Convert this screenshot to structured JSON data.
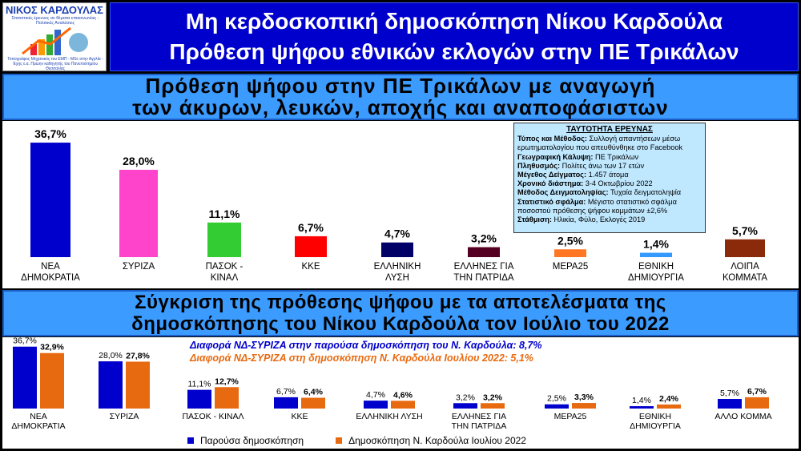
{
  "logo": {
    "name": "ΝΙΚΟΣ ΚΑΡΔΟΥΛΑΣ",
    "subtitle": "Στατιστικές έρευνες σε θέματα επικοινωνίας - Πολιτικές Αναλύσεις",
    "footer": "Τοπογράφος Μηχανικός του ΕΜΠ - MSc στην Αγγλία - Έχης ε.α. Πρώην καθηγητής του Πανεπιστημίου Θεσσαλίας"
  },
  "header": {
    "line1": "Μη κερδοσκοπική δημοσκόπηση  Νίκου  Καρδούλα",
    "line2": "Πρόθεση ψήφου εθνικών εκλογών στην ΠΕ Τρικάλων"
  },
  "band1": {
    "line1": "Πρόθεση   ψήφου   στην   ΠΕ   Τρικάλων  με  αναγωγή",
    "line2": "των άκυρων, λευκών, αποχής και αναποφάσιστων"
  },
  "band2": {
    "line1": "Σύγκριση της πρόθεσης ψήφου με τα αποτελέσματα της",
    "line2": "δημοσκόπησης του Νίκου Καρδούλα τον Ιούλιο του 2022"
  },
  "survey": {
    "title": "ΤΑΥΤΟΤΗΤΑ ΕΡΕΥΝΑΣ",
    "rows": [
      {
        "k": "Τύπος και Μέθοδος:",
        "v": " Συλλογή απαντήσεων μέσω ερωτηματολογίου που απευθύνθηκε στο Facebook"
      },
      {
        "k": "Γεωγραφική Κάλυψη:",
        "v": " ΠΕ Τρικάλων"
      },
      {
        "k": "Πληθυσμός:",
        "v": " Πολίτες άνω των 17 ετών"
      },
      {
        "k": "Μέγεθος Δείγματος:",
        "v": "  1.457 άτομα"
      },
      {
        "k": "Χρονικό διάστημα:",
        "v": " 3-4 Οκτωβρίου 2022"
      },
      {
        "k": "Μέθοδος Δειγματοληψίας:",
        "v": " Τυχαία δειγματοληψία"
      },
      {
        "k": "Στατιστικό σφάλμα:",
        "v": "  Μέγιστο στατιστικό σφάλμα ποσοστού πρόθεσης ψήφου κομμάτων ±2,6%"
      },
      {
        "k": "Στάθμιση:",
        "v": " Ηλικία, Φύλο, Εκλογές 2019"
      }
    ]
  },
  "notes": {
    "n1": "Διαφορά ΝΔ-ΣΥΡΙΖΑ στην παρούσα δημοσκόπηση του Ν. Καρδούλα: 8,7%",
    "n2": "Διαφορά ΝΔ-ΣΥΡΙΖΑ στη  δημοσκόπηση  Ν. Καρδούλα  Ιουλίου 2022: 5,1%"
  },
  "legend": {
    "current": "Παρούσα δημοσκόπηση",
    "july": "Δημοσκόπηση Ν. Καρδούλα Ιουλίου 2022"
  },
  "colors": {
    "current": "#0000cc",
    "july": "#e86a10"
  },
  "chart_data": [
    {
      "type": "bar",
      "categories": [
        [
          "ΝΕΑ",
          "ΔΗΜΟΚΡΑΤΙΑ"
        ],
        [
          "ΣΥΡΙΖΑ"
        ],
        [
          "ΠΑΣΟΚ -",
          "ΚΙΝΑΛ"
        ],
        [
          "ΚΚΕ"
        ],
        [
          "ΕΛΛΗΝΙΚΗ",
          "ΛΥΣΗ"
        ],
        [
          "ΕΛΛΗΝΕΣ ΓΙΑ",
          "ΤΗΝ ΠΑΤΡΙΔΑ"
        ],
        [
          "ΜΕΡΑ25"
        ],
        [
          "ΕΘΝΙΚΗ",
          "ΔΗΜΙΟΥΡΓΙΑ"
        ],
        [
          "ΛΟΙΠΑ",
          "ΚΟΜΜΑΤΑ"
        ]
      ],
      "values": [
        36.7,
        28.0,
        11.1,
        6.7,
        4.7,
        3.2,
        2.5,
        1.4,
        5.7
      ],
      "labels": [
        "36,7%",
        "28,0%",
        "11,1%",
        "6,7%",
        "4,7%",
        "3,2%",
        "2,5%",
        "1,4%",
        "5,7%"
      ],
      "colors": [
        "#0000cc",
        "#ff44cc",
        "#33cc33",
        "#ff0000",
        "#000066",
        "#550022",
        "#ff7722",
        "#3399ff",
        "#8b2a0a"
      ],
      "ylim": [
        0,
        38
      ]
    },
    {
      "type": "bar",
      "categories": [
        [
          "ΝΕΑ",
          "ΔΗΜΟΚΡΑΤΙΑ"
        ],
        [
          "ΣΥΡΙΖΑ"
        ],
        [
          "ΠΑΣΟΚ - ΚΙΝΑΛ"
        ],
        [
          "ΚΚΕ"
        ],
        [
          "ΕΛΛΗΝΙΚΗ ΛΥΣΗ"
        ],
        [
          "ΕΛΛΗΝΕΣ ΓΙΑ",
          "ΤΗΝ ΠΑΤΡΙΔΑ"
        ],
        [
          "ΜΕΡΑ25"
        ],
        [
          "ΕΘΝΙΚΗ",
          "ΔΗΜΙΟΥΡΓΙΑ"
        ],
        [
          "ΑΛΛΟ ΚΟΜΜΑ"
        ]
      ],
      "series": [
        {
          "name": "Παρούσα δημοσκόπηση",
          "values": [
            36.7,
            28.0,
            11.1,
            6.7,
            4.7,
            3.2,
            2.5,
            1.4,
            5.7
          ],
          "labels": [
            "36,7%",
            "28,0%",
            "11,1%",
            "6,7%",
            "4,7%",
            "3,2%",
            "2,5%",
            "1,4%",
            "5,7%"
          ]
        },
        {
          "name": "Δημοσκόπηση Ν. Καρδούλα Ιουλίου 2022",
          "values": [
            32.9,
            27.8,
            12.7,
            6.4,
            4.6,
            3.2,
            3.3,
            2.4,
            6.7
          ],
          "labels": [
            "32,9%",
            "27,8%",
            "12,7%",
            "6,4%",
            "4,6%",
            "3,2%",
            "3,3%",
            "2,4%",
            "6,7%"
          ]
        }
      ],
      "ylim": [
        0,
        38
      ],
      "legend": "bottom"
    }
  ]
}
